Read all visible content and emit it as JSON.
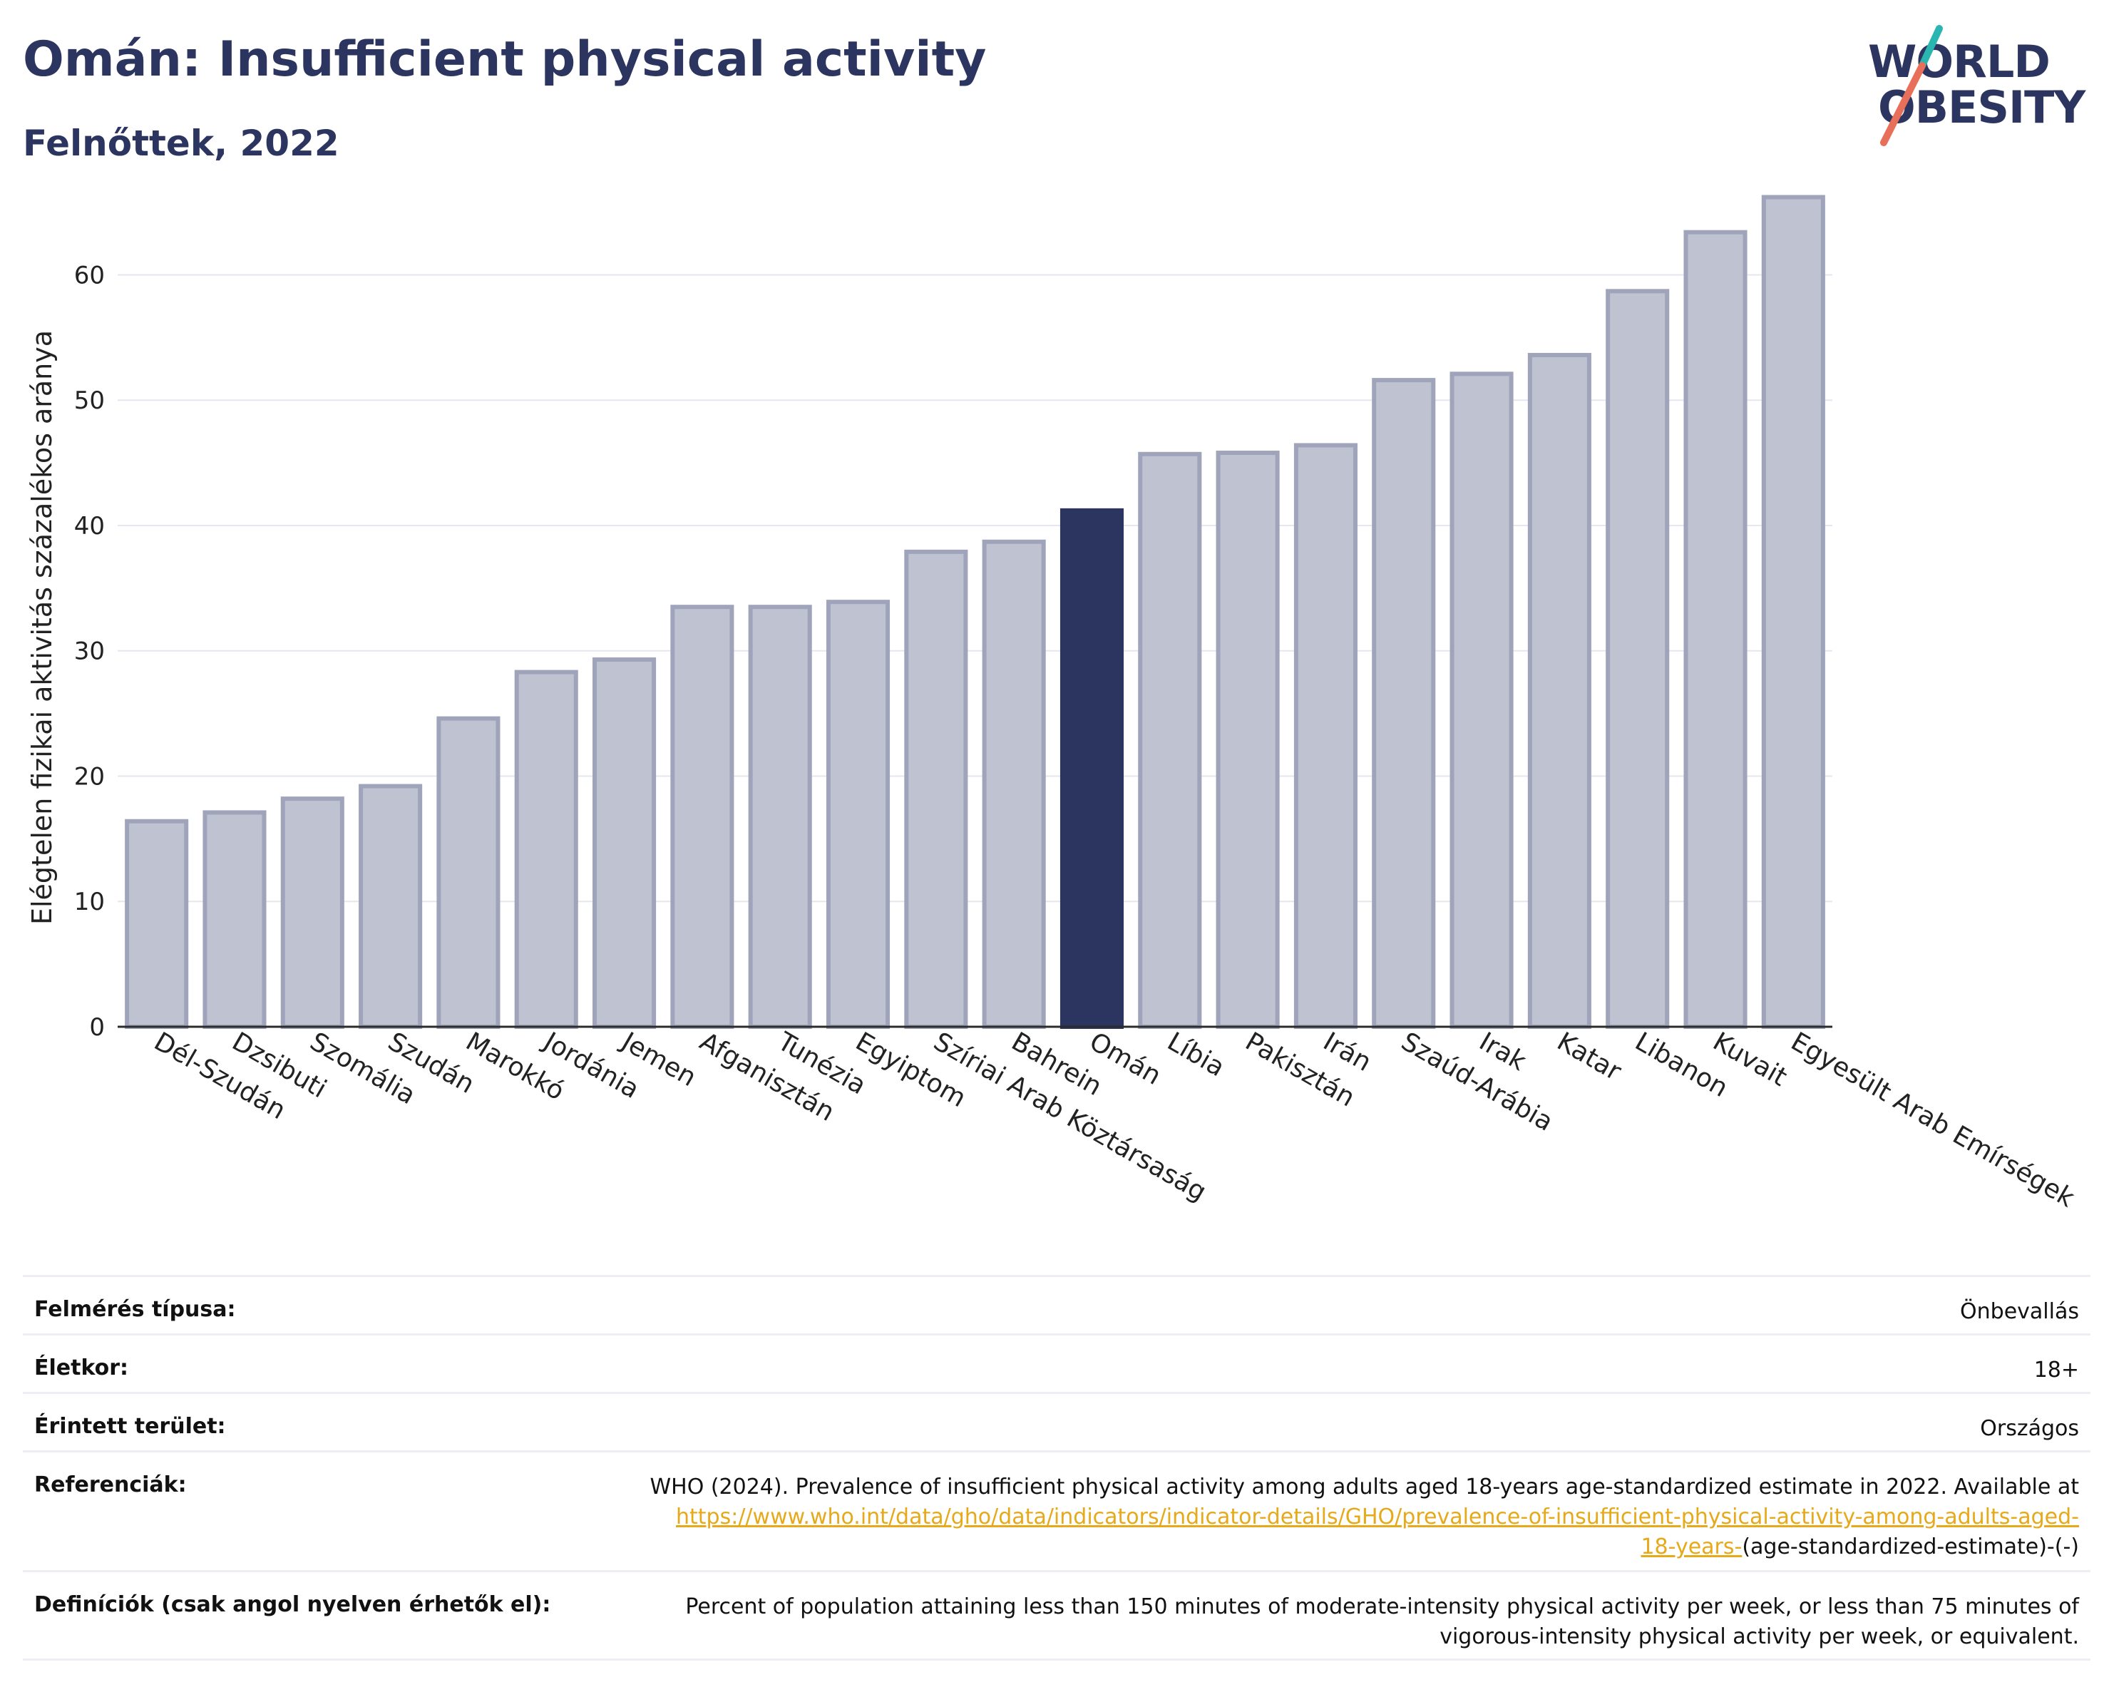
{
  "header": {
    "title": "Omán: Insufficient physical activity",
    "subtitle": "Felnőttek, 2022"
  },
  "logo": {
    "line1": "WORLD",
    "line2": "OBESITY",
    "accent_colors": [
      "#2bb5b0",
      "#e8705a"
    ]
  },
  "colors": {
    "bar_default": "#bfc2d0",
    "bar_default_border": "#9fa4bb",
    "bar_highlight": "#2c3560",
    "gridline": "#e6e7ee",
    "axis": "#2c2c2c",
    "text": "#222222",
    "link": "#e6a91a"
  },
  "chart_data": {
    "type": "bar",
    "title": "Omán: Insufficient physical activity",
    "subtitle": "Felnőttek, 2022",
    "ylabel": "Elégtelen fizikai aktivitás százalékos aránya",
    "xlabel": "",
    "ylim": [
      0,
      66
    ],
    "yticks": [
      0,
      10,
      20,
      30,
      40,
      50,
      60
    ],
    "grid": true,
    "highlight": "Omán",
    "categories": [
      "Dél-Szudán",
      "Dzsibuti",
      "Szomália",
      "Szudán",
      "Marokkó",
      "Jordánia",
      "Jemen",
      "Afganisztán",
      "Tunézia",
      "Egyiptom",
      "Szíriai Arab Köztársaság",
      "Bahrein",
      "Omán",
      "Líbia",
      "Pakisztán",
      "Irán",
      "Szaúd-Arábia",
      "Irak",
      "Katar",
      "Libanon",
      "Kuvait",
      "Egyesült Arab Emírségek"
    ],
    "values": [
      16.4,
      17.1,
      18.2,
      19.2,
      24.6,
      28.3,
      29.3,
      33.5,
      33.5,
      33.9,
      37.9,
      38.7,
      41.2,
      45.7,
      45.8,
      46.4,
      51.6,
      52.1,
      53.6,
      58.7,
      63.4,
      66.2
    ]
  },
  "meta": {
    "rows": [
      {
        "label": "Felmérés típusa:",
        "value": "Önbevallás"
      },
      {
        "label": "Életkor:",
        "value": "18+"
      },
      {
        "label": "Érintett terület:",
        "value": "Országos"
      }
    ],
    "references": {
      "label": "Referenciák:",
      "text": "WHO (2024). Prevalence of insufficient physical activity among adults aged 18-years age-standardized estimate in 2022. Available at",
      "link_line1": "https://www.who.int/data/gho/data/indicators/indicator-details/GHO/prevalence-of-insufficient-physical-activity-among-adults-aged-",
      "link_line2": "18-years-",
      "suffix": "(age-standardized-estimate)-(-)"
    },
    "definitions": {
      "label": "Definíciók (csak angol nyelven érhetők el):",
      "line1": "Percent of population attaining less than 150 minutes of moderate-intensity physical activity per week, or less than 75 minutes of",
      "line2": "vigorous-intensity physical activity per week, or equivalent."
    }
  }
}
